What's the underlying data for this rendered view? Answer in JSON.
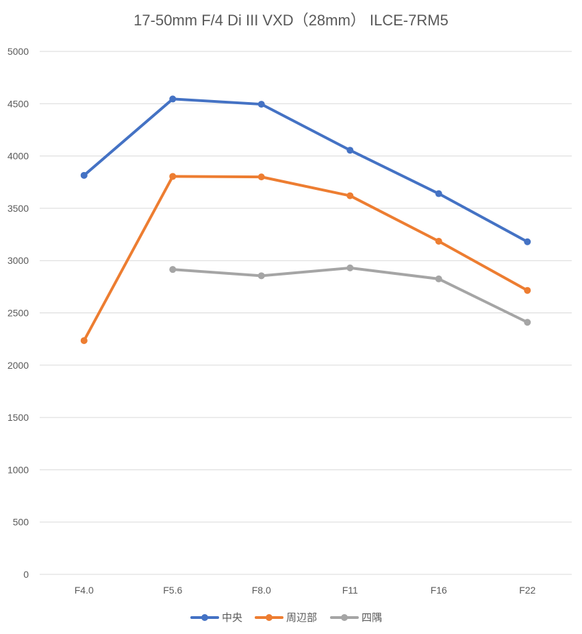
{
  "chart_data": {
    "type": "line",
    "title": "17-50mm F/4 Di III VXD（28mm） ILCE-7RM5",
    "xlabel": "",
    "ylabel": "",
    "categories": [
      "F4.0",
      "F5.6",
      "F8.0",
      "F11",
      "F16",
      "F22"
    ],
    "ylim": [
      0,
      5000
    ],
    "yticks": [
      0,
      500,
      1000,
      1500,
      2000,
      2500,
      3000,
      3500,
      4000,
      4500,
      5000
    ],
    "grid": true,
    "legend": "bottom",
    "series": [
      {
        "name": "中央",
        "color": "#4472c4",
        "values": [
          3815,
          4545,
          4495,
          4055,
          3640,
          3180
        ]
      },
      {
        "name": "周辺部",
        "color": "#ed7d31",
        "values": [
          2235,
          3805,
          3800,
          3620,
          3185,
          2715
        ]
      },
      {
        "name": "四隅",
        "color": "#a5a5a5",
        "values": [
          null,
          2915,
          2855,
          2930,
          2825,
          2410
        ]
      }
    ]
  }
}
